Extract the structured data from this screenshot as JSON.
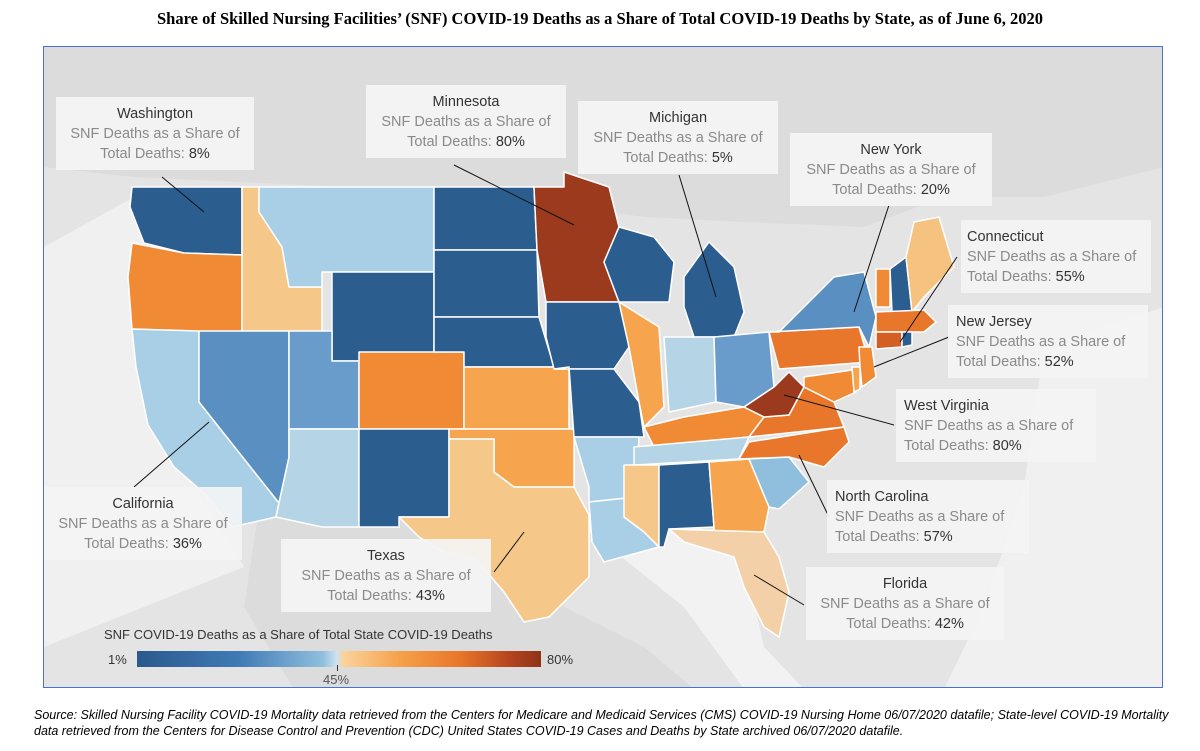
{
  "title": "Share of Skilled Nursing Facilities’ (SNF) COVID-19 Deaths as a Share of Total COVID-19 Deaths by State, as of June 6, 2020",
  "callout_subtitle": "SNF Deaths as a Share of",
  "callout_prefix": "Total Deaths:",
  "callouts": [
    {
      "state": "Washington",
      "value": "8%"
    },
    {
      "state": "Minnesota",
      "value": "80%"
    },
    {
      "state": "Michigan",
      "value": "5%"
    },
    {
      "state": "New York",
      "value": "20%"
    },
    {
      "state": "Connecticut",
      "value": "55%"
    },
    {
      "state": "New Jersey",
      "value": "52%"
    },
    {
      "state": "West Virginia",
      "value": "80%"
    },
    {
      "state": "North Carolina",
      "value": "57%"
    },
    {
      "state": "Florida",
      "value": "42%"
    },
    {
      "state": "Texas",
      "value": "43%"
    },
    {
      "state": "California",
      "value": "36%"
    }
  ],
  "legend": {
    "title": "SNF COVID-19 Deaths as a Share of Total State COVID-19 Deaths",
    "min_label": "1%",
    "mid_label": "45%",
    "max_label": "80%"
  },
  "source": "Source: Skilled Nursing Facility COVID-19 Mortality data retrieved from the Centers for Medicare and Medicaid Services (CMS) COVID-19 Nursing Home 06/07/2020 datafile; State-level COVID-19 Mortality data retrieved from the Centers for Disease Control and Prevention (CDC) United States COVID-19 Cases and Deaths by State archived 06/07/2020 datafile.",
  "colors": {
    "dark_blue": "#2c5d8f",
    "mid_blue": "#5a8fc2",
    "light_blue": "#a9cfe6",
    "pale_blue": "#c8dfec",
    "light_orange": "#f5c88a",
    "orange": "#f5a04b",
    "dark_orange": "#e8772c",
    "red_brown": "#9b3a1c",
    "border": "#4a6fd6"
  }
}
